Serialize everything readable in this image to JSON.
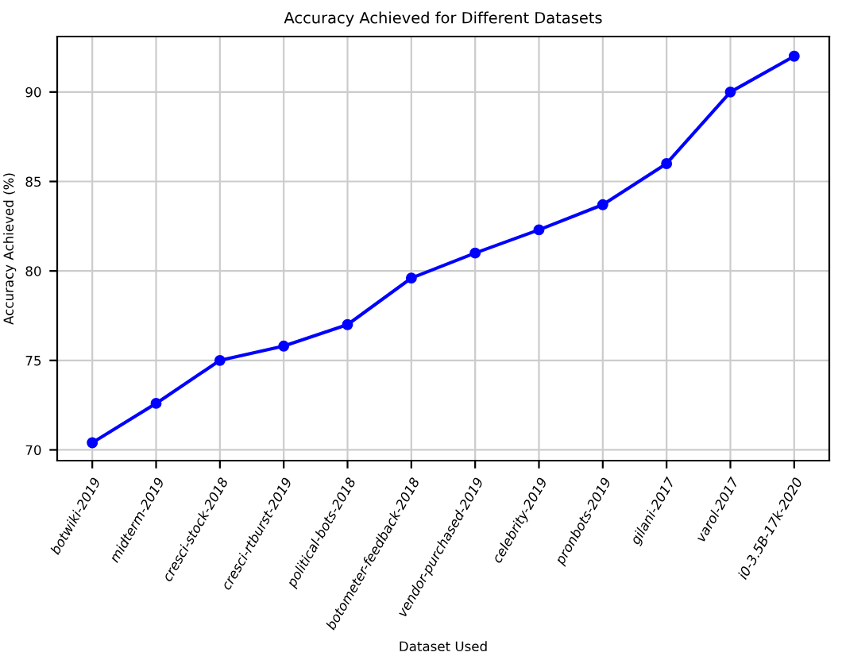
{
  "chart_data": {
    "type": "line",
    "title": "Accuracy Achieved for Different Datasets",
    "xlabel": "Dataset Used",
    "ylabel": "Accuracy Achieved (%)",
    "categories": [
      "botwiki-2019",
      "midterm-2019",
      "cresci-stock-2018",
      "cresci-rtburst-2019",
      "political-bots-2018",
      "botometer-feedback-2018",
      "vendor-purchased-2019",
      "celebrity-2019",
      "pronbots-2019",
      "gilani-2017",
      "varol-2017",
      "i0-3.5B-17k-2020"
    ],
    "series": [
      {
        "color": "#0000ff",
        "values": [
          70.4,
          72.6,
          75.0,
          75.8,
          77.0,
          79.6,
          81.0,
          82.3,
          83.7,
          86.0,
          90.0,
          92.0
        ]
      }
    ],
    "ylim": [
      69.4,
      93.1
    ],
    "yticks": [
      70,
      75,
      80,
      85,
      90
    ],
    "grid": true,
    "marker": "circle",
    "line_style": "solid"
  }
}
